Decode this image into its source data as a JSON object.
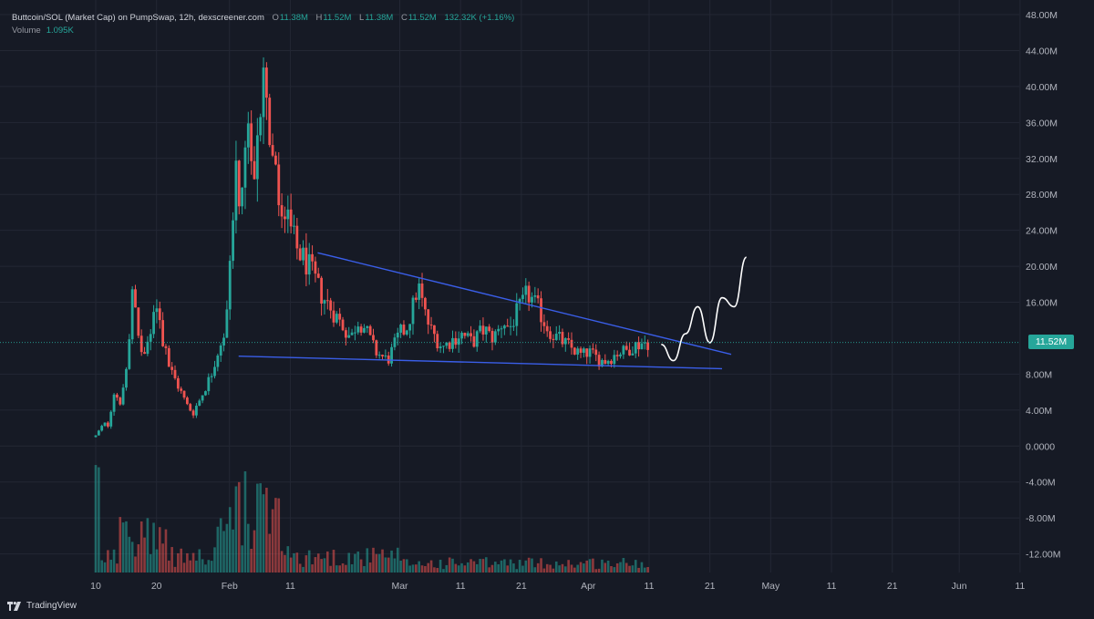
{
  "header": {
    "symbol": "Buttcoin/SOL (Market Cap) on PumpSwap, 12h, dexscreener.com",
    "o_label": "O",
    "o_value": "11.38M",
    "h_label": "H",
    "h_value": "11.52M",
    "l_label": "L",
    "l_value": "11.38M",
    "c_label": "C",
    "c_value": "11.52M",
    "change": "132.32K (+1.16%)",
    "volume_label": "Volume",
    "volume_value": "1.095K"
  },
  "price_badge": "11.52M",
  "brand": "TradingView",
  "colors": {
    "background": "#161a25",
    "up": "#26a69a",
    "down": "#ef5350",
    "trendline": "#3a5ee8",
    "projection": "#ffffff",
    "grid": "#232734"
  },
  "chart_data": {
    "type": "candlestick",
    "interval": "12h",
    "y_axis": {
      "range": [
        -14,
        48
      ],
      "unit": "M",
      "ticks": [
        {
          "value": 48,
          "label": "48.00M"
        },
        {
          "value": 44,
          "label": "44.00M"
        },
        {
          "value": 40,
          "label": "40.00M"
        },
        {
          "value": 36,
          "label": "36.00M"
        },
        {
          "value": 32,
          "label": "32.00M"
        },
        {
          "value": 28,
          "label": "28.00M"
        },
        {
          "value": 24,
          "label": "24.00M"
        },
        {
          "value": 20,
          "label": "20.00M"
        },
        {
          "value": 16,
          "label": "16.00M"
        },
        {
          "value": 8,
          "label": "8.00M"
        },
        {
          "value": 4,
          "label": "4.00M"
        },
        {
          "value": 0,
          "label": "0.0000"
        },
        {
          "value": -4,
          "label": "-4.00M"
        },
        {
          "value": -8,
          "label": "-8.00M"
        },
        {
          "value": -12,
          "label": "-12.00M"
        }
      ]
    },
    "x_axis": {
      "ticks": [
        {
          "day": 10,
          "label": "10"
        },
        {
          "day": 20,
          "label": "20"
        },
        {
          "day": 32,
          "label": "Feb"
        },
        {
          "day": 42,
          "label": "11"
        },
        {
          "day": 60,
          "label": "Mar"
        },
        {
          "day": 70,
          "label": "11"
        },
        {
          "day": 80,
          "label": "21"
        },
        {
          "day": 91,
          "label": "Apr"
        },
        {
          "day": 101,
          "label": "11"
        },
        {
          "day": 111,
          "label": "21"
        },
        {
          "day": 121,
          "label": "May"
        },
        {
          "day": 131,
          "label": "11"
        },
        {
          "day": 141,
          "label": "21"
        },
        {
          "day": 152,
          "label": "Jun"
        },
        {
          "day": 162,
          "label": "11"
        }
      ],
      "note_day": "day index = days since Jan 0"
    },
    "close_path": [
      [
        10,
        1.0
      ],
      [
        11,
        2.0
      ],
      [
        12,
        2.5
      ],
      [
        13,
        6.0
      ],
      [
        14,
        5.0
      ],
      [
        15,
        8.0
      ],
      [
        16,
        17.0
      ],
      [
        17,
        12.0
      ],
      [
        18,
        10.0
      ],
      [
        19,
        13.0
      ],
      [
        20,
        16.0
      ],
      [
        21,
        12.0
      ],
      [
        22,
        9.0
      ],
      [
        23,
        7.5
      ],
      [
        24,
        6.0
      ],
      [
        25,
        4.5
      ],
      [
        26,
        3.8
      ],
      [
        27,
        5.0
      ],
      [
        28,
        6.5
      ],
      [
        29,
        8.0
      ],
      [
        30,
        10.5
      ],
      [
        31,
        11.0
      ],
      [
        32,
        20.0
      ],
      [
        33,
        30.0
      ],
      [
        34,
        26.0
      ],
      [
        35,
        35.0
      ],
      [
        36,
        27.0
      ],
      [
        37,
        37.0
      ],
      [
        37.5,
        45.0
      ],
      [
        38,
        38.0
      ],
      [
        39,
        33.0
      ],
      [
        40,
        27.0
      ],
      [
        41,
        25.0
      ],
      [
        42,
        24.0
      ],
      [
        43,
        22.0
      ],
      [
        44,
        21.0
      ],
      [
        45,
        20.0
      ],
      [
        46,
        18.5
      ],
      [
        47,
        17.0
      ],
      [
        48,
        16.0
      ],
      [
        49,
        15.0
      ],
      [
        50,
        14.0
      ],
      [
        51,
        13.0
      ],
      [
        52,
        12.0
      ],
      [
        53,
        14.0
      ],
      [
        54,
        13.5
      ],
      [
        55,
        12.0
      ],
      [
        56,
        10.5
      ],
      [
        57,
        10.0
      ],
      [
        58,
        9.5
      ],
      [
        59,
        11.0
      ],
      [
        60,
        12.5
      ],
      [
        61,
        13.0
      ],
      [
        62,
        15.0
      ],
      [
        63,
        18.0
      ],
      [
        64,
        15.0
      ],
      [
        65,
        13.0
      ],
      [
        66,
        12.0
      ],
      [
        67,
        11.0
      ],
      [
        68,
        11.5
      ],
      [
        69,
        12.0
      ],
      [
        70,
        12.5
      ],
      [
        71,
        12.0
      ],
      [
        72,
        11.5
      ],
      [
        73,
        12.5
      ],
      [
        74,
        13.0
      ],
      [
        75,
        12.0
      ],
      [
        76,
        12.5
      ],
      [
        77,
        14.0
      ],
      [
        78,
        13.0
      ],
      [
        79,
        14.5
      ],
      [
        80,
        15.5
      ],
      [
        81,
        17.0
      ],
      [
        82,
        16.0
      ],
      [
        83,
        15.0
      ],
      [
        84,
        13.5
      ],
      [
        85,
        12.5
      ],
      [
        86,
        12.0
      ],
      [
        87,
        11.5
      ],
      [
        88,
        11.0
      ],
      [
        89,
        10.5
      ],
      [
        90,
        10.0
      ],
      [
        91,
        10.5
      ],
      [
        92,
        10.0
      ],
      [
        93,
        9.5
      ],
      [
        94,
        9.5
      ],
      [
        95,
        10.0
      ],
      [
        96,
        10.5
      ],
      [
        97,
        10.5
      ],
      [
        98,
        11.0
      ],
      [
        99,
        11.3
      ],
      [
        100,
        11.52
      ]
    ],
    "candle_count": 182,
    "annotations": {
      "upper_trendline": [
        [
          46.5,
          21.5
        ],
        [
          114.5,
          10.2
        ]
      ],
      "lower_trendline": [
        [
          33.5,
          10.0
        ],
        [
          113,
          8.6
        ]
      ],
      "projection_path": [
        [
          103,
          11.3
        ],
        [
          105,
          9.5
        ],
        [
          107,
          12.5
        ],
        [
          109,
          15.5
        ],
        [
          111,
          11.5
        ],
        [
          113,
          16.5
        ],
        [
          115,
          15.5
        ],
        [
          117,
          21.0
        ]
      ]
    }
  }
}
